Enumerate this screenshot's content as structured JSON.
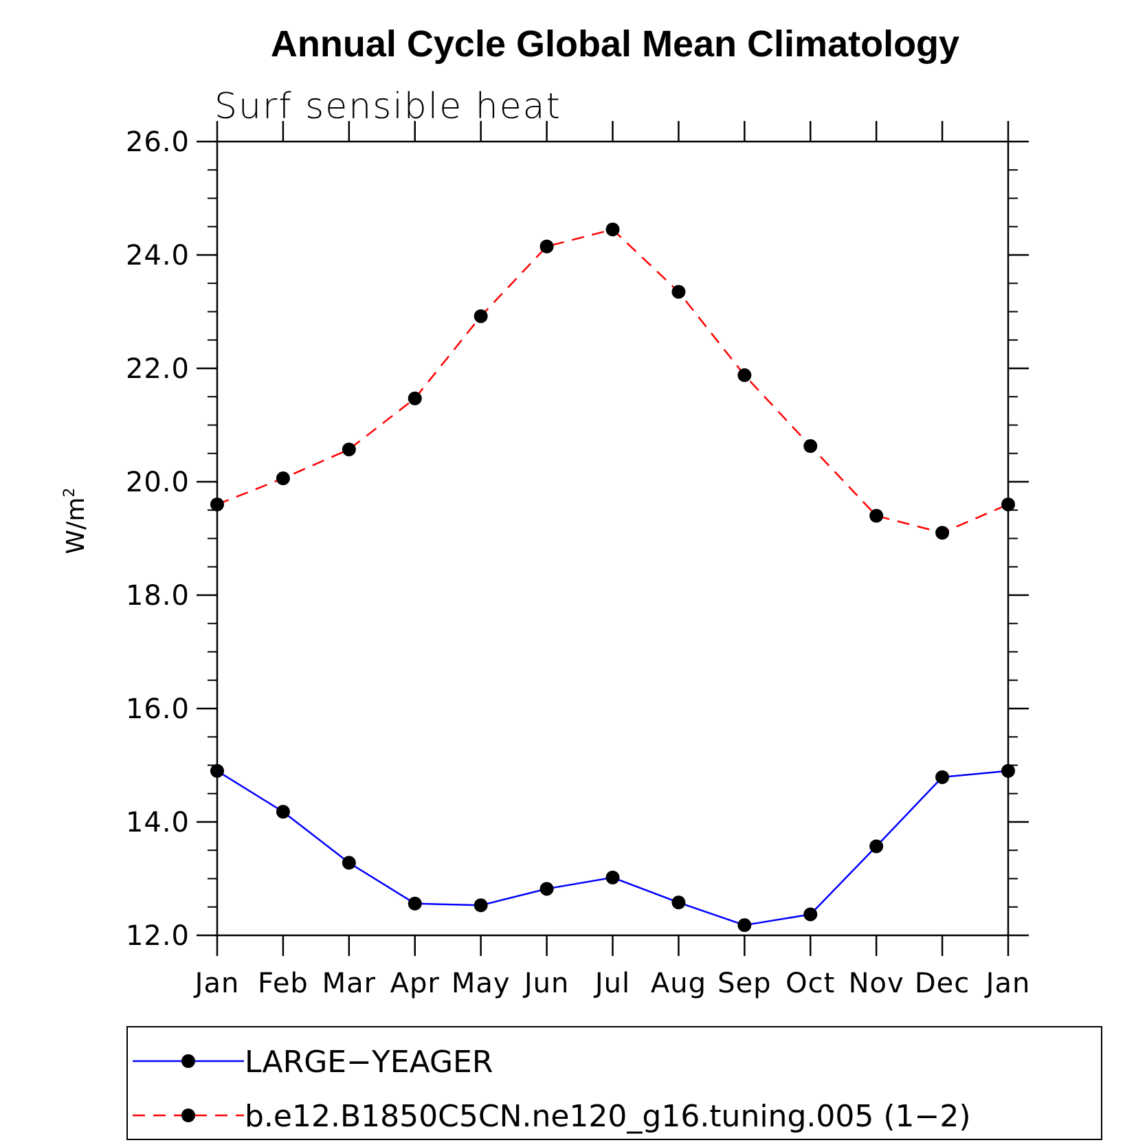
{
  "chart_data": {
    "type": "line",
    "title": "Annual Cycle Global Mean Climatology",
    "subtitle": "Surf sensible heat",
    "ylabel": "W/m",
    "ylabel_sup": "2",
    "xlabel": "",
    "categories": [
      "Jan",
      "Feb",
      "Mar",
      "Apr",
      "May",
      "Jun",
      "Jul",
      "Aug",
      "Sep",
      "Oct",
      "Nov",
      "Dec",
      "Jan"
    ],
    "ylim": [
      12.0,
      26.0
    ],
    "yticks": [
      "12.0",
      "14.0",
      "16.0",
      "18.0",
      "20.0",
      "22.0",
      "24.0",
      "26.0"
    ],
    "legend_position": "bottom",
    "series": [
      {
        "name": "LARGE−YEAGER",
        "color": "#0000ff",
        "dash": "solid",
        "values": [
          14.9,
          14.18,
          13.28,
          12.56,
          12.53,
          12.82,
          13.02,
          12.58,
          12.18,
          12.37,
          13.57,
          14.79,
          14.9
        ]
      },
      {
        "name": "b.e12.B1850C5CN.ne120_g16.tuning.005 (1−2)",
        "color": "#ff0000",
        "dash": "dashed",
        "values": [
          19.6,
          20.06,
          20.57,
          21.47,
          22.92,
          24.15,
          24.45,
          23.35,
          21.88,
          20.63,
          19.4,
          19.1,
          19.6
        ]
      }
    ]
  }
}
